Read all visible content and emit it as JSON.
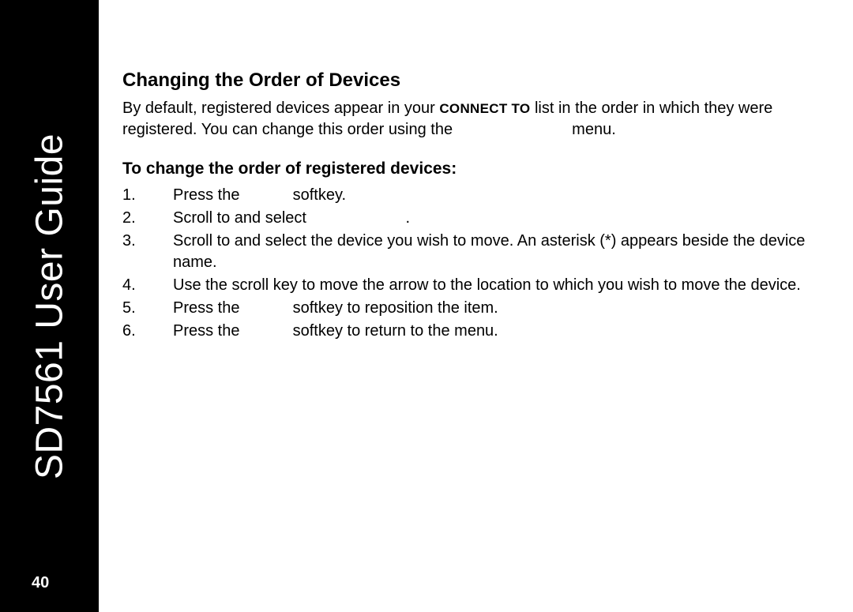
{
  "sidebar": {
    "title": "SD7561 User Guide",
    "page_number": "40"
  },
  "content": {
    "heading": "Changing the Order of Devices",
    "intro_parts": {
      "p1": "By default, registered devices appear in your ",
      "connect_to": "CONNECT TO",
      "p2": " list in the order in which they were registered. You can change this order using the ",
      "p3": " menu."
    },
    "sub_heading": "To change the order of registered devices:",
    "steps": [
      {
        "n": "1.",
        "a": "Press the ",
        "b": " softkey."
      },
      {
        "n": "2.",
        "a": "Scroll to and select ",
        "b": "."
      },
      {
        "n": "3.",
        "a": "Scroll to and select the device you wish to move. An asterisk (*) appears beside the device name.",
        "b": ""
      },
      {
        "n": "4.",
        "a": "Use the scroll key to move the arrow to the location to which you wish to move the device.",
        "b": ""
      },
      {
        "n": "5.",
        "a": "Press the ",
        "b": " softkey to reposition the item."
      },
      {
        "n": "6.",
        "a": "Press the ",
        "b": " softkey to return to the menu."
      }
    ]
  }
}
